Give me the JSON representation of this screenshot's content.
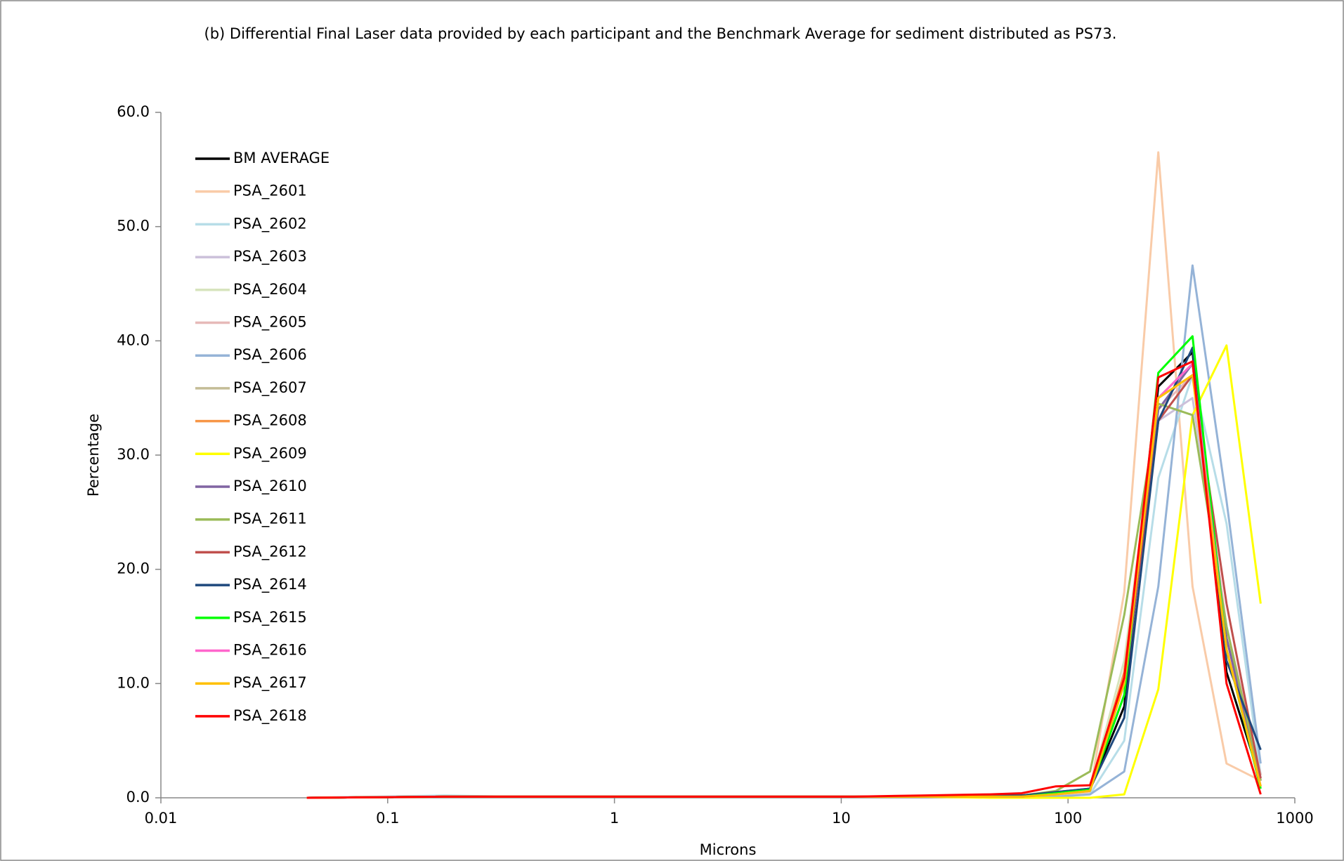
{
  "chart_data": {
    "type": "line",
    "title": "(b) Differential Final Laser data provided by each participant and the Benchmark Average for sediment distributed as PS73.",
    "x_label": "Microns",
    "y_label": "Percentage",
    "log_x": true,
    "legend": "upper left",
    "grid": false,
    "xlim": [
      0.01,
      1000
    ],
    "xticks": [
      0.01,
      0.1,
      1,
      10,
      100,
      1000
    ],
    "ylim": [
      0,
      60
    ],
    "yticks": [
      {
        "value": 0,
        "label": "0.0"
      },
      {
        "value": 10,
        "label": "10.0"
      },
      {
        "value": 20,
        "label": "20.0"
      },
      {
        "value": 30,
        "label": "30.0"
      },
      {
        "value": 40,
        "label": "40.0"
      },
      {
        "value": 50,
        "label": "50.0"
      },
      {
        "value": 60,
        "label": "60.0"
      }
    ],
    "x": [
      0.044,
      0.088,
      0.177,
      0.354,
      0.707,
      1.41,
      2.83,
      5.66,
      11.3,
      22.6,
      45.3,
      62.5,
      88.4,
      125,
      177,
      250,
      354,
      500,
      707
    ],
    "series": [
      {
        "name": "BM AVERAGE",
        "color": "#000000",
        "values": [
          0,
          0.05,
          0.1,
          0.1,
          0.1,
          0.1,
          0.1,
          0.1,
          0.1,
          0.1,
          0.2,
          0.2,
          0.5,
          0.7,
          8,
          36,
          39,
          11,
          1.5
        ]
      },
      {
        "name": "PSA_2601",
        "color": "#f9cba8",
        "values": [
          0,
          0.05,
          0.1,
          0.1,
          0.1,
          0.1,
          0.1,
          0.1,
          0.1,
          0.1,
          0.1,
          0.1,
          0.2,
          0.5,
          18,
          56.5,
          18.5,
          3,
          1.5
        ]
      },
      {
        "name": "PSA_2602",
        "color": "#b7dde8",
        "values": [
          0,
          0.1,
          0.2,
          0.1,
          0.1,
          0.1,
          0.1,
          0.1,
          0.1,
          0.1,
          0.1,
          0,
          0.1,
          0.3,
          5,
          28,
          37,
          24,
          2
        ]
      },
      {
        "name": "PSA_2603",
        "color": "#ccc0da",
        "values": [
          0,
          0.05,
          0.1,
          0.1,
          0.1,
          0.1,
          0.1,
          0.1,
          0.1,
          0.1,
          0.1,
          0.1,
          0.3,
          0.6,
          10,
          33,
          35,
          15,
          2
        ]
      },
      {
        "name": "PSA_2604",
        "color": "#d7e4bd",
        "values": [
          0,
          0.05,
          0.1,
          0.1,
          0.1,
          0.1,
          0.1,
          0.1,
          0.1,
          0.1,
          0.1,
          0.1,
          0.3,
          0.8,
          12,
          35,
          37,
          14,
          2
        ]
      },
      {
        "name": "PSA_2605",
        "color": "#e6b9b8",
        "values": [
          0,
          0.05,
          0.1,
          0.1,
          0.1,
          0.1,
          0.1,
          0.1,
          0.1,
          0.1,
          0.1,
          0.1,
          0.3,
          0.6,
          10,
          34,
          37,
          15,
          2
        ]
      },
      {
        "name": "PSA_2606",
        "color": "#95b3d7",
        "values": [
          0,
          0.05,
          0.1,
          0.1,
          0.1,
          0.1,
          0.1,
          0.1,
          0.1,
          0.1,
          0.1,
          0,
          0.1,
          0.3,
          2.3,
          18.5,
          46.6,
          26,
          3
        ]
      },
      {
        "name": "PSA_2607",
        "color": "#c4bd97",
        "values": [
          0,
          0.05,
          0.1,
          0.1,
          0.1,
          0.1,
          0.1,
          0.1,
          0.1,
          0.1,
          0.1,
          0.1,
          0.3,
          0.6,
          11,
          35,
          38,
          14,
          1.5
        ]
      },
      {
        "name": "PSA_2608",
        "color": "#f79646",
        "values": [
          0,
          0.05,
          0.1,
          0.1,
          0.1,
          0.1,
          0.1,
          0.1,
          0.1,
          0.1,
          0.1,
          0.1,
          0.3,
          0.6,
          11,
          35,
          38,
          14,
          1
        ]
      },
      {
        "name": "PSA_2609",
        "color": "#ffff00",
        "values": [
          0,
          0.05,
          0.1,
          0.1,
          0.1,
          0.1,
          0.1,
          0.1,
          0.1,
          0.1,
          0,
          0,
          0,
          0,
          0.3,
          9.5,
          33.5,
          39.6,
          17
        ]
      },
      {
        "name": "PSA_2610",
        "color": "#8064a2",
        "values": [
          0,
          0.05,
          0.1,
          0.1,
          0.1,
          0.1,
          0.1,
          0.1,
          0.1,
          0.1,
          0.2,
          0.2,
          0.5,
          0.8,
          9,
          34,
          38,
          14,
          1.5
        ]
      },
      {
        "name": "PSA_2611",
        "color": "#9bbb59",
        "values": [
          0,
          0.05,
          0.1,
          0.1,
          0.1,
          0.1,
          0.1,
          0.1,
          0.1,
          0.1,
          0.2,
          0.2,
          0.6,
          2.3,
          16,
          34.5,
          33.5,
          15,
          1.5
        ]
      },
      {
        "name": "PSA_2612",
        "color": "#c0504d",
        "values": [
          0,
          0.05,
          0.1,
          0.1,
          0.1,
          0.1,
          0.1,
          0.1,
          0.1,
          0.1,
          0.1,
          0.1,
          0.4,
          0.8,
          10,
          33,
          37,
          17,
          1.7
        ]
      },
      {
        "name": "PSA_2614",
        "color": "#1f497d",
        "values": [
          0,
          0.05,
          0.1,
          0.1,
          0.1,
          0.1,
          0.1,
          0.1,
          0.1,
          0.1,
          0.2,
          0.2,
          0.5,
          0.8,
          7,
          33,
          39.4,
          12,
          4.2
        ]
      },
      {
        "name": "PSA_2615",
        "color": "#00ff00",
        "values": [
          0,
          0.05,
          0.1,
          0.1,
          0.1,
          0.1,
          0.1,
          0.1,
          0.1,
          0.1,
          0.1,
          0.1,
          0.4,
          0.7,
          9,
          37.2,
          40.4,
          13,
          0.8
        ]
      },
      {
        "name": "PSA_2616",
        "color": "#ff66cc",
        "values": [
          0,
          0.05,
          0.1,
          0.1,
          0.1,
          0.1,
          0.1,
          0.1,
          0.1,
          0.1,
          0.1,
          0.1,
          0.3,
          0.6,
          10,
          35,
          38,
          13,
          1
        ]
      },
      {
        "name": "PSA_2617",
        "color": "#ffc000",
        "values": [
          0,
          0.05,
          0.1,
          0.1,
          0.1,
          0.1,
          0.1,
          0.1,
          0.1,
          0.1,
          0.1,
          0.1,
          0.3,
          0.6,
          10,
          35,
          37,
          13,
          1
        ]
      },
      {
        "name": "PSA_2618",
        "color": "#ff0000",
        "values": [
          0,
          0.05,
          0.1,
          0.1,
          0.1,
          0.1,
          0.1,
          0.1,
          0.1,
          0.2,
          0.3,
          0.4,
          1,
          1.1,
          10.5,
          36.8,
          38.2,
          10,
          0.3
        ]
      }
    ]
  }
}
